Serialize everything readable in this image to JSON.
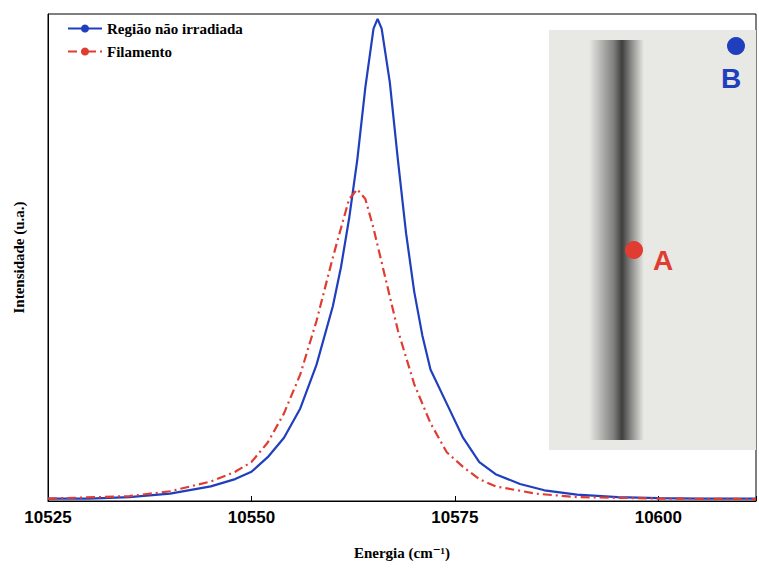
{
  "chart_data": {
    "type": "line",
    "x_label": "Energia (cm⁻¹)",
    "y_label": "Intensidade (u.a.)",
    "xlim": [
      10525,
      10612
    ],
    "xticks": [
      10525,
      10550,
      10575,
      10600
    ],
    "ylim": [
      0,
      1
    ],
    "tick_labels": "x",
    "grid": false,
    "legend": "upper left",
    "series": [
      {
        "name": "Região não irradiada",
        "color": "#1f3fbf",
        "line_style": "solid",
        "x": [
          10525,
          10530,
          10535,
          10540,
          10545,
          10548,
          10550,
          10552,
          10554,
          10556,
          10558,
          10560,
          10561,
          10562,
          10563,
          10564,
          10565,
          10565.5,
          10566,
          10567,
          10568,
          10569,
          10570,
          10571,
          10572,
          10574,
          10576,
          10578,
          10580,
          10583,
          10586,
          10590,
          10595,
          10600,
          10605,
          10612
        ],
        "values": [
          0.005,
          0.005,
          0.008,
          0.015,
          0.03,
          0.045,
          0.06,
          0.09,
          0.13,
          0.19,
          0.28,
          0.4,
          0.48,
          0.58,
          0.7,
          0.85,
          0.97,
          0.99,
          0.97,
          0.86,
          0.7,
          0.55,
          0.43,
          0.34,
          0.27,
          0.2,
          0.13,
          0.08,
          0.055,
          0.035,
          0.022,
          0.013,
          0.008,
          0.006,
          0.005,
          0.005
        ]
      },
      {
        "name": "Filamento",
        "color": "#e03c31",
        "line_style": "dashdot",
        "x": [
          10525,
          10535,
          10540,
          10545,
          10548,
          10550,
          10552,
          10554,
          10556,
          10558,
          10560,
          10561,
          10562,
          10563,
          10564,
          10565,
          10566,
          10567,
          10568,
          10570,
          10572,
          10574,
          10576,
          10578,
          10580,
          10585,
          10590,
          10600,
          10612
        ],
        "values": [
          0.005,
          0.01,
          0.02,
          0.04,
          0.06,
          0.08,
          0.12,
          0.18,
          0.26,
          0.37,
          0.5,
          0.56,
          0.62,
          0.64,
          0.62,
          0.56,
          0.49,
          0.42,
          0.35,
          0.24,
          0.16,
          0.1,
          0.07,
          0.045,
          0.03,
          0.015,
          0.008,
          0.005,
          0.004
        ]
      }
    ],
    "annotations": [
      {
        "text": "A",
        "color": "#e03c31"
      },
      {
        "text": "B",
        "color": "#1f3fbf"
      }
    ]
  }
}
